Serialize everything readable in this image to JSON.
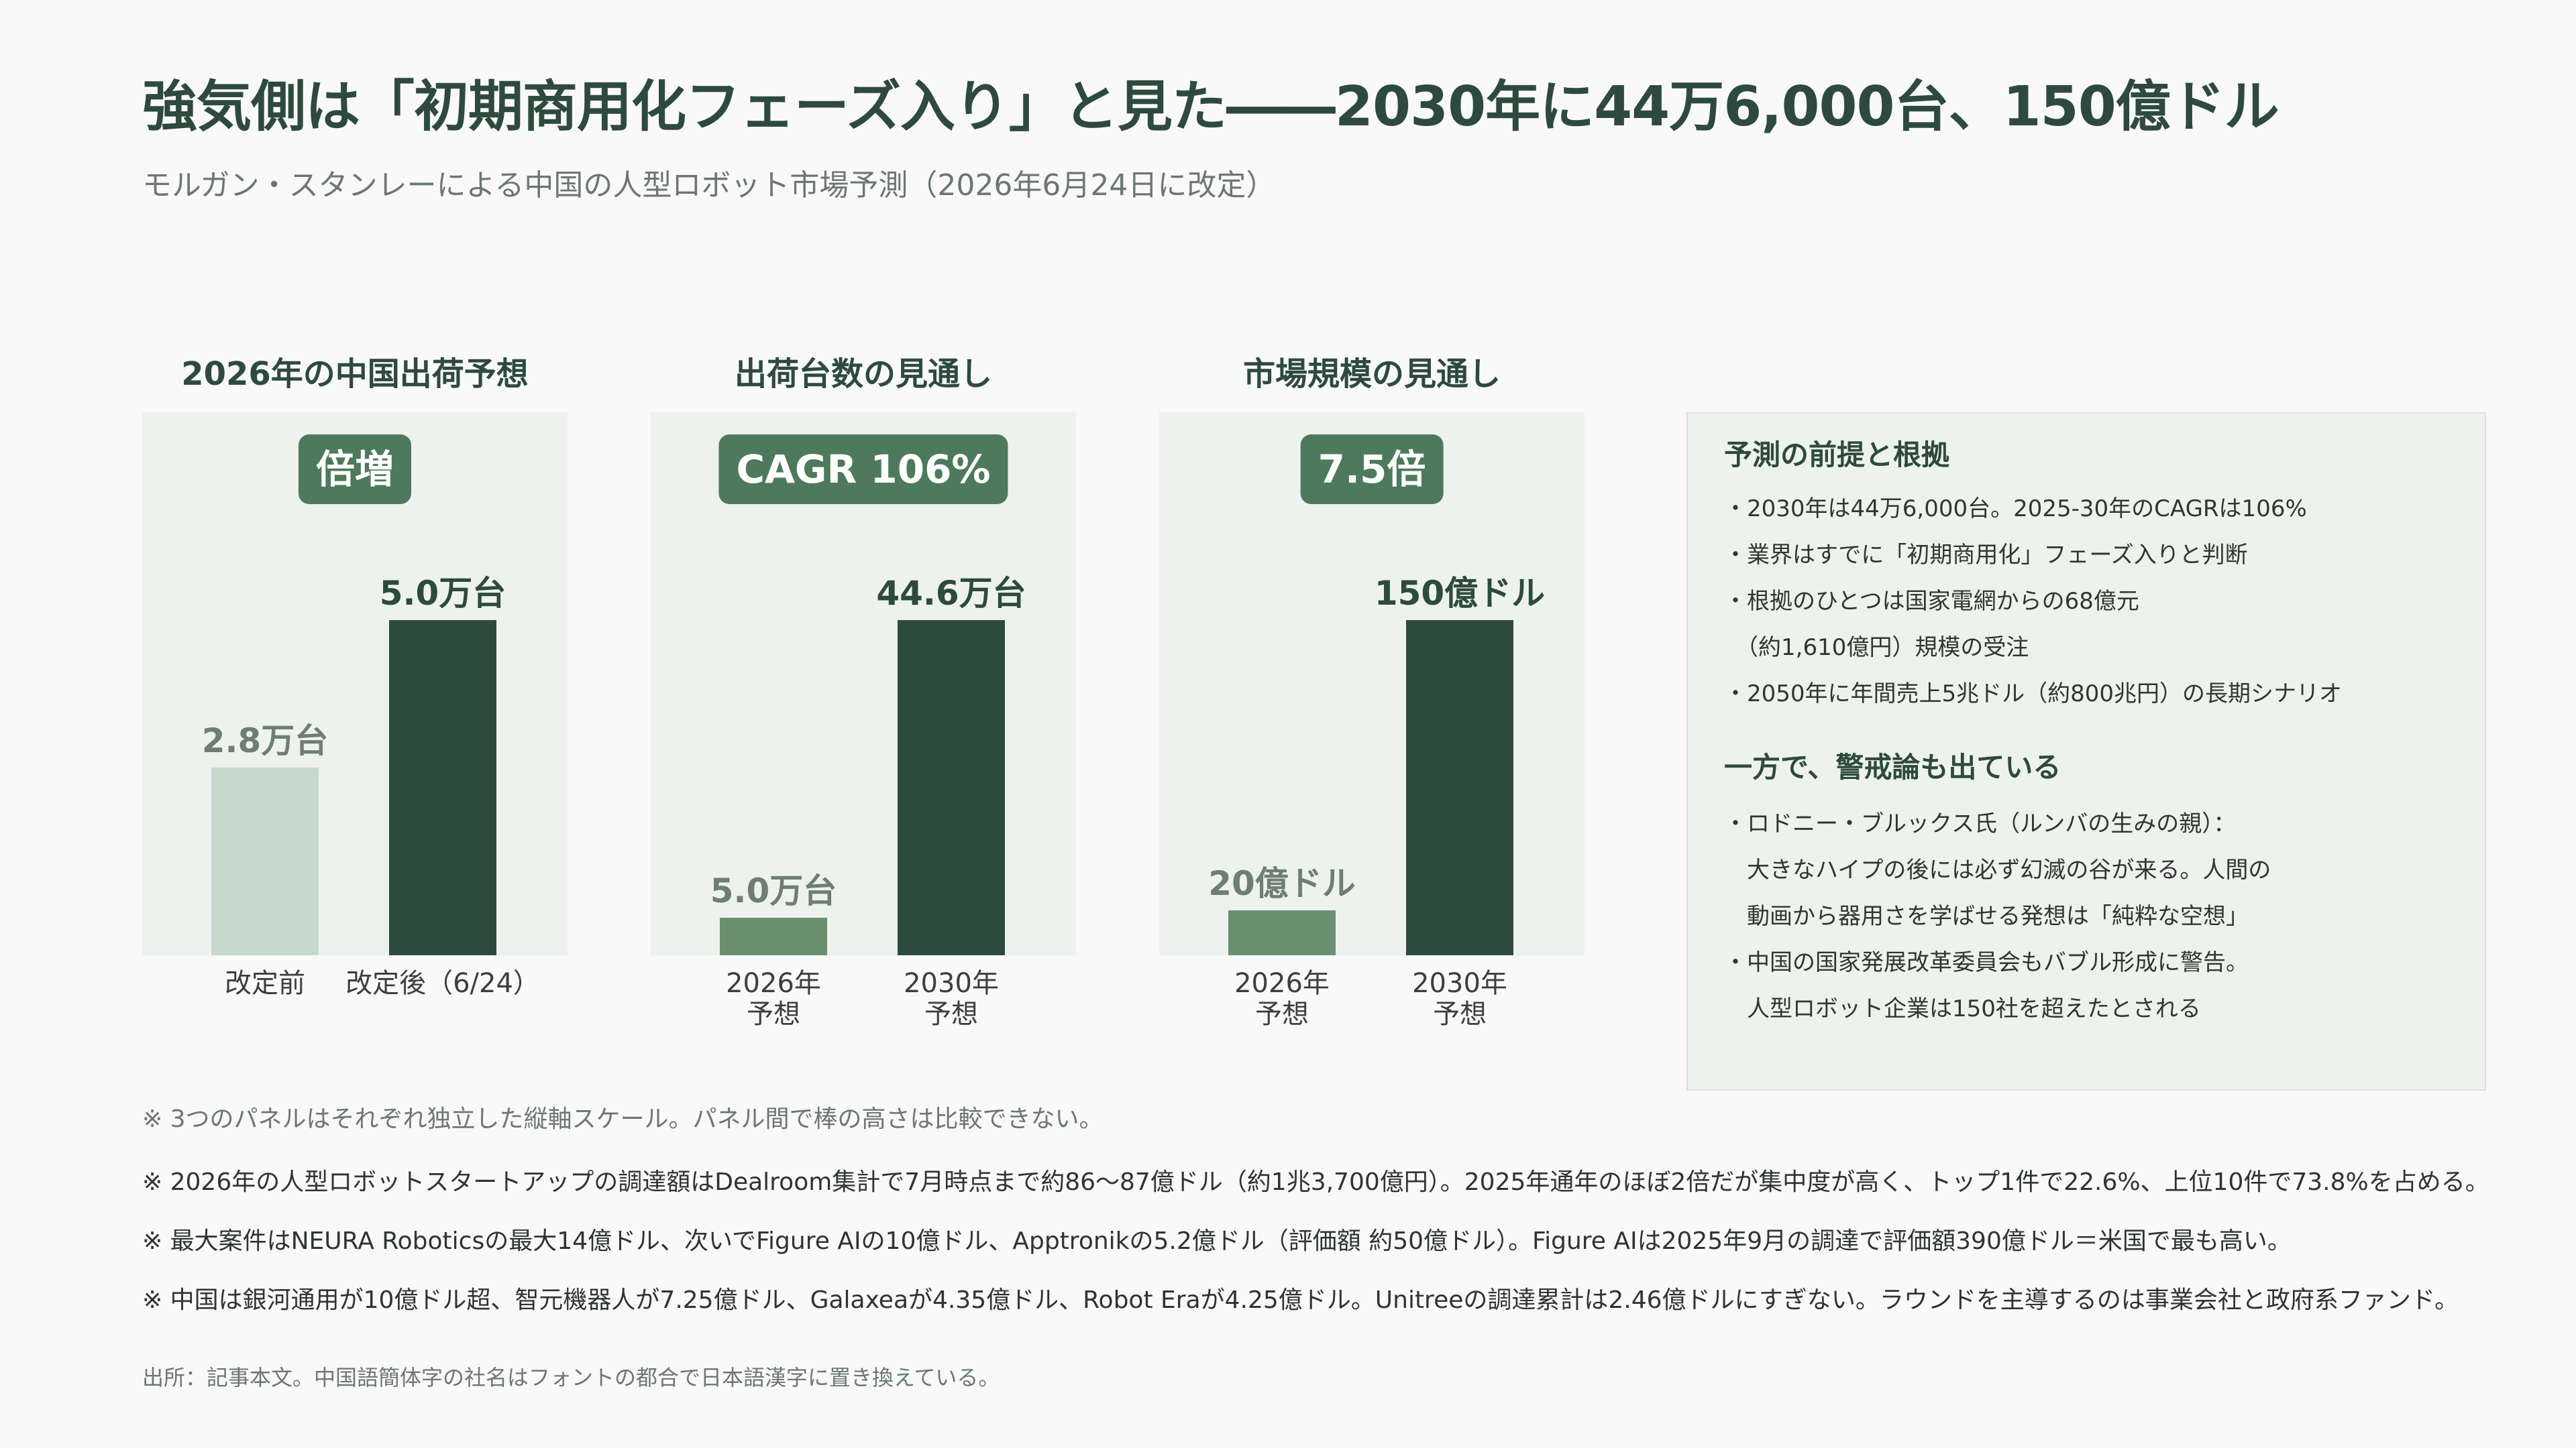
{
  "header": {
    "title": "強気側は「初期商用化フェーズ入り」と見た――2030年に44万6,000台、150億ドル",
    "subtitle": "モルガン・スタンレーによる中国の人型ロボット市場予測（2026年6月24日に改定）"
  },
  "colors": {
    "dark_bar": "#2d4a3e",
    "light_bar": "#c7d8cc",
    "mid_bar": "#6a8f6f",
    "badge": "#4d7a5c",
    "panel_bg": "#eef2ef"
  },
  "chart_data": [
    {
      "type": "bar",
      "title": "2026年の中国出荷予想",
      "badge": "倍増",
      "categories": [
        "改定前",
        "改定後（6/24）"
      ],
      "category_lines": [
        [
          "改定前"
        ],
        [
          "改定後（6/24）"
        ]
      ],
      "values": [
        2.8,
        5.0
      ],
      "value_labels": [
        "2.8万台",
        "5.0万台"
      ],
      "unit": "万台",
      "ylim": [
        0,
        5.0
      ],
      "bar_colors": [
        "#c7d8cc",
        "#2d4a3e"
      ],
      "label_colors": [
        "#6f7e74",
        "#2d4a3e"
      ]
    },
    {
      "type": "bar",
      "title": "出荷台数の見通し",
      "badge": "CAGR 106%",
      "categories": [
        "2026年予想",
        "2030年予想"
      ],
      "category_lines": [
        [
          "2026年",
          "予想"
        ],
        [
          "2030年",
          "予想"
        ]
      ],
      "values": [
        5.0,
        44.6
      ],
      "value_labels": [
        "5.0万台",
        "44.6万台"
      ],
      "unit": "万台",
      "ylim": [
        0,
        44.6
      ],
      "bar_colors": [
        "#6a8f6f",
        "#2d4a3e"
      ],
      "label_colors": [
        "#6f7e74",
        "#2d4a3e"
      ]
    },
    {
      "type": "bar",
      "title": "市場規模の見通し",
      "badge": "7.5倍",
      "categories": [
        "2026年予想",
        "2030年予想"
      ],
      "category_lines": [
        [
          "2026年",
          "予想"
        ],
        [
          "2030年",
          "予想"
        ]
      ],
      "values": [
        20,
        150
      ],
      "value_labels": [
        "20億ドル",
        "150億ドル"
      ],
      "unit": "億ドル",
      "ylim": [
        0,
        150
      ],
      "bar_colors": [
        "#6a8f6f",
        "#2d4a3e"
      ],
      "label_colors": [
        "#6f7e74",
        "#2d4a3e"
      ]
    }
  ],
  "side": {
    "heading1": "予測の前提と根拠",
    "lines1": [
      "・2030年は44万6,000台。2025-30年のCAGRは106%",
      "・業界はすでに「初期商用化」フェーズ入りと判断",
      "・根拠のひとつは国家電網からの68億元",
      "　（約1,610億円）規模の受注",
      "・2050年に年間売上5兆ドル（約800兆円）の長期シナリオ"
    ],
    "heading2": "一方で、警戒論も出ている",
    "lines2": [
      "・ロドニー・ブルックス氏（ルンバの生みの親）：",
      "　大きなハイプの後には必ず幻滅の谷が来る。人間の",
      "　動画から器用さを学ばせる発想は「純粋な空想」",
      "・中国の国家発展改革委員会もバブル形成に警告。",
      "　人型ロボット企業は150社を超えたとされる"
    ]
  },
  "notes": [
    "※ 3つのパネルはそれぞれ独立した縦軸スケール。パネル間で棒の高さは比較できない。",
    "※ 2026年の人型ロボットスタートアップの調達額はDealroom集計で7月時点まで約86〜87億ドル（約1兆3,700億円）。2025年通年のほぼ2倍だが集中度が高く、トップ1件で22.6%、上位10件で73.8%を占める。",
    "※ 最大案件はNEURA Roboticsの最大14億ドル、次いでFigure AIの10億ドル、Apptronikの5.2億ドル（評価額 約50億ドル）。Figure AIは2025年9月の調達で評価額390億ドル＝米国で最も高い。",
    "※ 中国は銀河通用が10億ドル超、智元機器人が7.25億ドル、Galaxeaが4.35億ドル、Robot Eraが4.25億ドル。Unitreeの調達累計は2.46億ドルにすぎない。ラウンドを主導するのは事業会社と政府系ファンド。"
  ],
  "source": "出所：記事本文。中国語簡体字の社名はフォントの都合で日本語漢字に置き換えている。"
}
